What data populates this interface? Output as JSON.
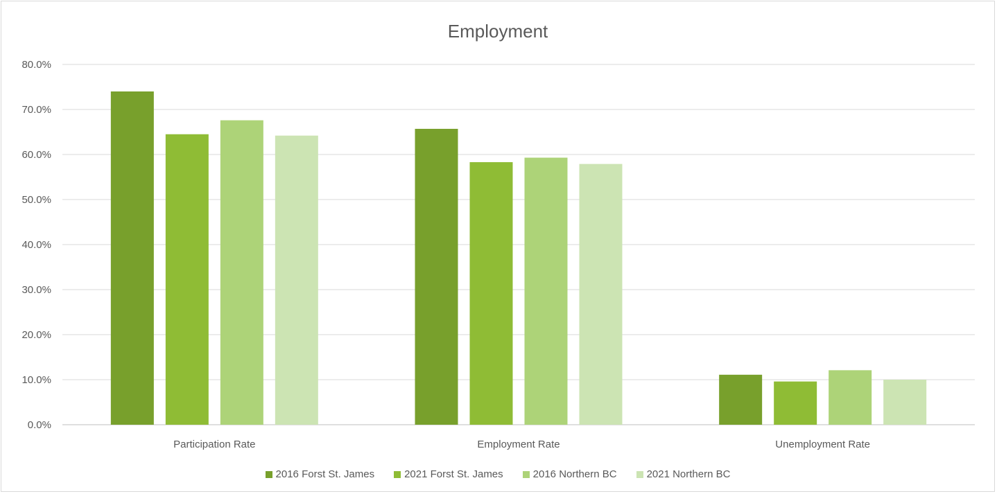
{
  "chart_data": {
    "type": "bar",
    "title": "Employment",
    "categories": [
      "Participation Rate",
      "Employment Rate",
      "Unemployment Rate"
    ],
    "series": [
      {
        "name": "2016 Forst St. James",
        "color": "#78a02c",
        "values": [
          74.0,
          65.7,
          11.1
        ]
      },
      {
        "name": "2021 Forst St. James",
        "color": "#8fbc35",
        "values": [
          64.5,
          58.3,
          9.6
        ]
      },
      {
        "name": "2016 Northern BC",
        "color": "#add378",
        "values": [
          67.6,
          59.3,
          12.1
        ]
      },
      {
        "name": "2021 Northern BC",
        "color": "#cce4b3",
        "values": [
          64.2,
          57.9,
          10.0
        ]
      }
    ],
    "yticks": [
      "0.0%",
      "10.0%",
      "20.0%",
      "30.0%",
      "40.0%",
      "50.0%",
      "60.0%",
      "70.0%",
      "80.0%"
    ],
    "ylim": [
      0,
      80
    ],
    "grid": true,
    "legend_position": "bottom"
  }
}
